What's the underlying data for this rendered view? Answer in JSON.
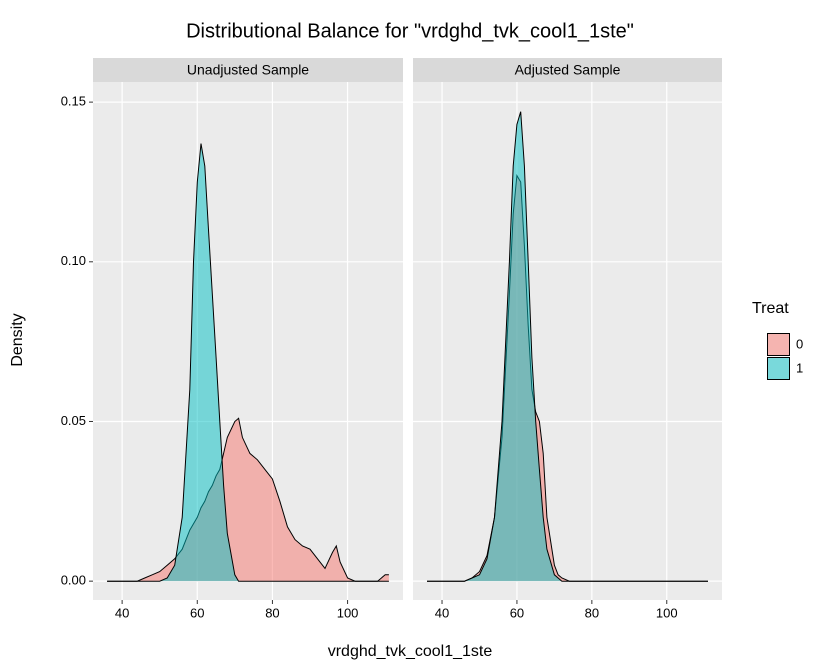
{
  "title": "Distributional Balance for \"vrdghd_tvk_cool1_1ste\"",
  "x_label": "vrdghd_tvk_cool1_1ste",
  "y_label": "Density",
  "legend": {
    "title": "Treat",
    "position": "right"
  },
  "alpha": 0.5,
  "chart_data": [
    {
      "type": "area",
      "title": "Unadjusted Sample",
      "x": [
        36,
        40,
        44,
        46,
        48,
        50,
        52,
        54,
        56,
        58,
        59,
        60,
        61,
        62,
        63,
        64,
        65,
        66,
        67,
        68,
        70,
        71,
        72,
        74,
        76,
        78,
        80,
        82,
        84,
        86,
        88,
        90,
        92,
        94,
        96,
        97,
        98,
        100,
        102,
        104,
        106,
        108,
        110,
        111
      ],
      "series": [
        {
          "name": "0",
          "color": "#F8766D",
          "values": [
            0,
            0,
            0,
            0.001,
            0.002,
            0.003,
            0.005,
            0.007,
            0.01,
            0.016,
            0.018,
            0.02,
            0.023,
            0.025,
            0.028,
            0.03,
            0.033,
            0.035,
            0.04,
            0.045,
            0.05,
            0.051,
            0.045,
            0.04,
            0.038,
            0.035,
            0.032,
            0.025,
            0.017,
            0.013,
            0.011,
            0.01,
            0.007,
            0.004,
            0.009,
            0.011,
            0.006,
            0.001,
            0,
            0,
            0,
            0,
            0.002,
            0.002
          ]
        },
        {
          "name": "1",
          "color": "#00BFC4",
          "values": [
            0,
            0,
            0,
            0,
            0,
            0,
            0.001,
            0.005,
            0.02,
            0.06,
            0.1,
            0.125,
            0.137,
            0.13,
            0.11,
            0.09,
            0.07,
            0.05,
            0.03,
            0.015,
            0.002,
            0,
            0,
            0,
            0,
            0,
            0,
            0,
            0,
            0,
            0,
            0,
            0,
            0,
            0,
            0,
            0,
            0,
            0,
            0,
            0,
            0,
            0,
            0
          ]
        }
      ],
      "xlim": [
        32.25,
        114.75
      ],
      "xticks": [
        40,
        60,
        80,
        100
      ],
      "ylim": [
        -0.0059,
        0.1563
      ],
      "yticks": [
        {
          "value": 0,
          "label": "0.00"
        },
        0.05,
        {
          "value": 0.1,
          "label": "0.10"
        },
        0.15
      ],
      "grid": true
    },
    {
      "type": "area",
      "title": "Adjusted Sample",
      "x": [
        36,
        40,
        44,
        46,
        48,
        50,
        52,
        54,
        56,
        58,
        59,
        60,
        61,
        62,
        63,
        64,
        65,
        66,
        67,
        68,
        70,
        71,
        72,
        74,
        76,
        78,
        80,
        82,
        84,
        86,
        88,
        90,
        92,
        94,
        96,
        97,
        98,
        100,
        102,
        104,
        106,
        108,
        110,
        111
      ],
      "series": [
        {
          "name": "0",
          "color": "#F8766D",
          "values": [
            0,
            0,
            0,
            0,
            0.001,
            0.003,
            0.008,
            0.02,
            0.045,
            0.09,
            0.115,
            0.127,
            0.125,
            0.105,
            0.08,
            0.06,
            0.053,
            0.05,
            0.04,
            0.02,
            0.005,
            0.002,
            0.001,
            0,
            0,
            0,
            0,
            0,
            0,
            0,
            0,
            0,
            0,
            0,
            0,
            0,
            0,
            0,
            0,
            0,
            0,
            0,
            0,
            0
          ]
        },
        {
          "name": "1",
          "color": "#00BFC4",
          "values": [
            0,
            0,
            0,
            0,
            0.001,
            0.002,
            0.007,
            0.02,
            0.05,
            0.1,
            0.13,
            0.143,
            0.147,
            0.13,
            0.1,
            0.07,
            0.05,
            0.035,
            0.02,
            0.01,
            0.002,
            0.001,
            0,
            0,
            0,
            0,
            0,
            0,
            0,
            0,
            0,
            0,
            0,
            0,
            0,
            0,
            0,
            0,
            0,
            0,
            0,
            0,
            0,
            0
          ]
        }
      ],
      "xlim": [
        32.25,
        114.75
      ],
      "xticks": [
        40,
        60,
        80,
        100
      ],
      "ylim": [
        -0.0059,
        0.1563
      ],
      "yticks": [
        {
          "value": 0,
          "label": "0.00"
        },
        0.05,
        {
          "value": 0.1,
          "label": "0.10"
        },
        0.15
      ],
      "grid": true
    }
  ]
}
